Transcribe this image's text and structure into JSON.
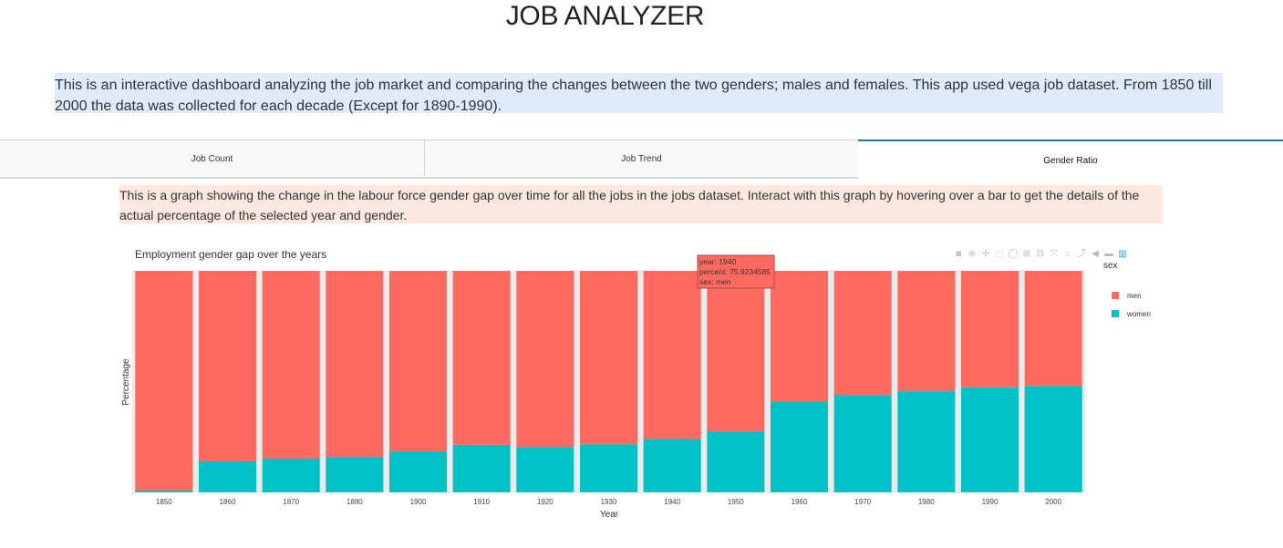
{
  "header": {
    "title": "JOB ANALYZER"
  },
  "intro": {
    "text": "This is an interactive dashboard analyzing the job market and comparing the changes between the two genders; males and females. This app used vega job dataset. From 1850 till 2000 the data was collected for each decade (Except for 1890-1990)."
  },
  "tabs": [
    {
      "label": "Job Count",
      "active": false
    },
    {
      "label": "Job Trend",
      "active": false
    },
    {
      "label": "Gender Ratio",
      "active": true
    }
  ],
  "description": {
    "text": "This is a graph showing the change in the labour force gender gap over time for all the jobs in the jobs dataset. Interact with this graph by hovering over a bar to get the details of the actual percentage of the selected year and gender."
  },
  "modebar": {
    "icons": [
      "camera-icon",
      "zoom-icon",
      "pan-icon",
      "box-select-icon",
      "lasso-icon",
      "zoom-in-icon",
      "zoom-out-icon",
      "autoscale-icon",
      "reset-axes-icon",
      "spike-lines-icon",
      "compare-hover-icon",
      "closest-hover-icon",
      "plotly-logo-icon"
    ],
    "glyphs": [
      "◙",
      "⊕",
      "✢",
      "⬚",
      "◯",
      "⊞",
      "⊟",
      "⤧",
      "⌂",
      "⤴",
      "◀",
      "▬",
      "▥"
    ]
  },
  "colors": {
    "men": "#ff6a60",
    "women": "#00c2c6",
    "gap": "#ebebeb",
    "tooltip_bg": "#ff6a60",
    "tooltip_border": "#aa4944"
  },
  "chart_data": {
    "type": "bar",
    "stacked": true,
    "title": "Employment gender gap over the years",
    "xlabel": "Year",
    "ylabel": "Percentage",
    "categories": [
      "1850",
      "1860",
      "1870",
      "1880",
      "1900",
      "1910",
      "1920",
      "1930",
      "1940",
      "1950",
      "1960",
      "1970",
      "1980",
      "1990",
      "2000"
    ],
    "series": [
      {
        "name": "women",
        "values": [
          0.8,
          14.0,
          15.2,
          16.0,
          18.5,
          21.5,
          20.5,
          21.7,
          24.1,
          27.6,
          41.1,
          44.0,
          45.8,
          47.4,
          48.0
        ]
      },
      {
        "name": "men",
        "values": [
          99.2,
          86.0,
          84.8,
          84.0,
          81.5,
          78.5,
          79.5,
          78.3,
          75.9,
          72.4,
          58.9,
          56.0,
          54.2,
          52.6,
          52.0
        ]
      }
    ],
    "ylim": [
      0,
      100
    ],
    "legend": {
      "title": "sex",
      "position": "right",
      "items": [
        "men",
        "women"
      ]
    },
    "tooltip": {
      "category": "1940",
      "lines": [
        "year: 1940",
        "percent: 75.9234585",
        "sex: men"
      ]
    }
  }
}
